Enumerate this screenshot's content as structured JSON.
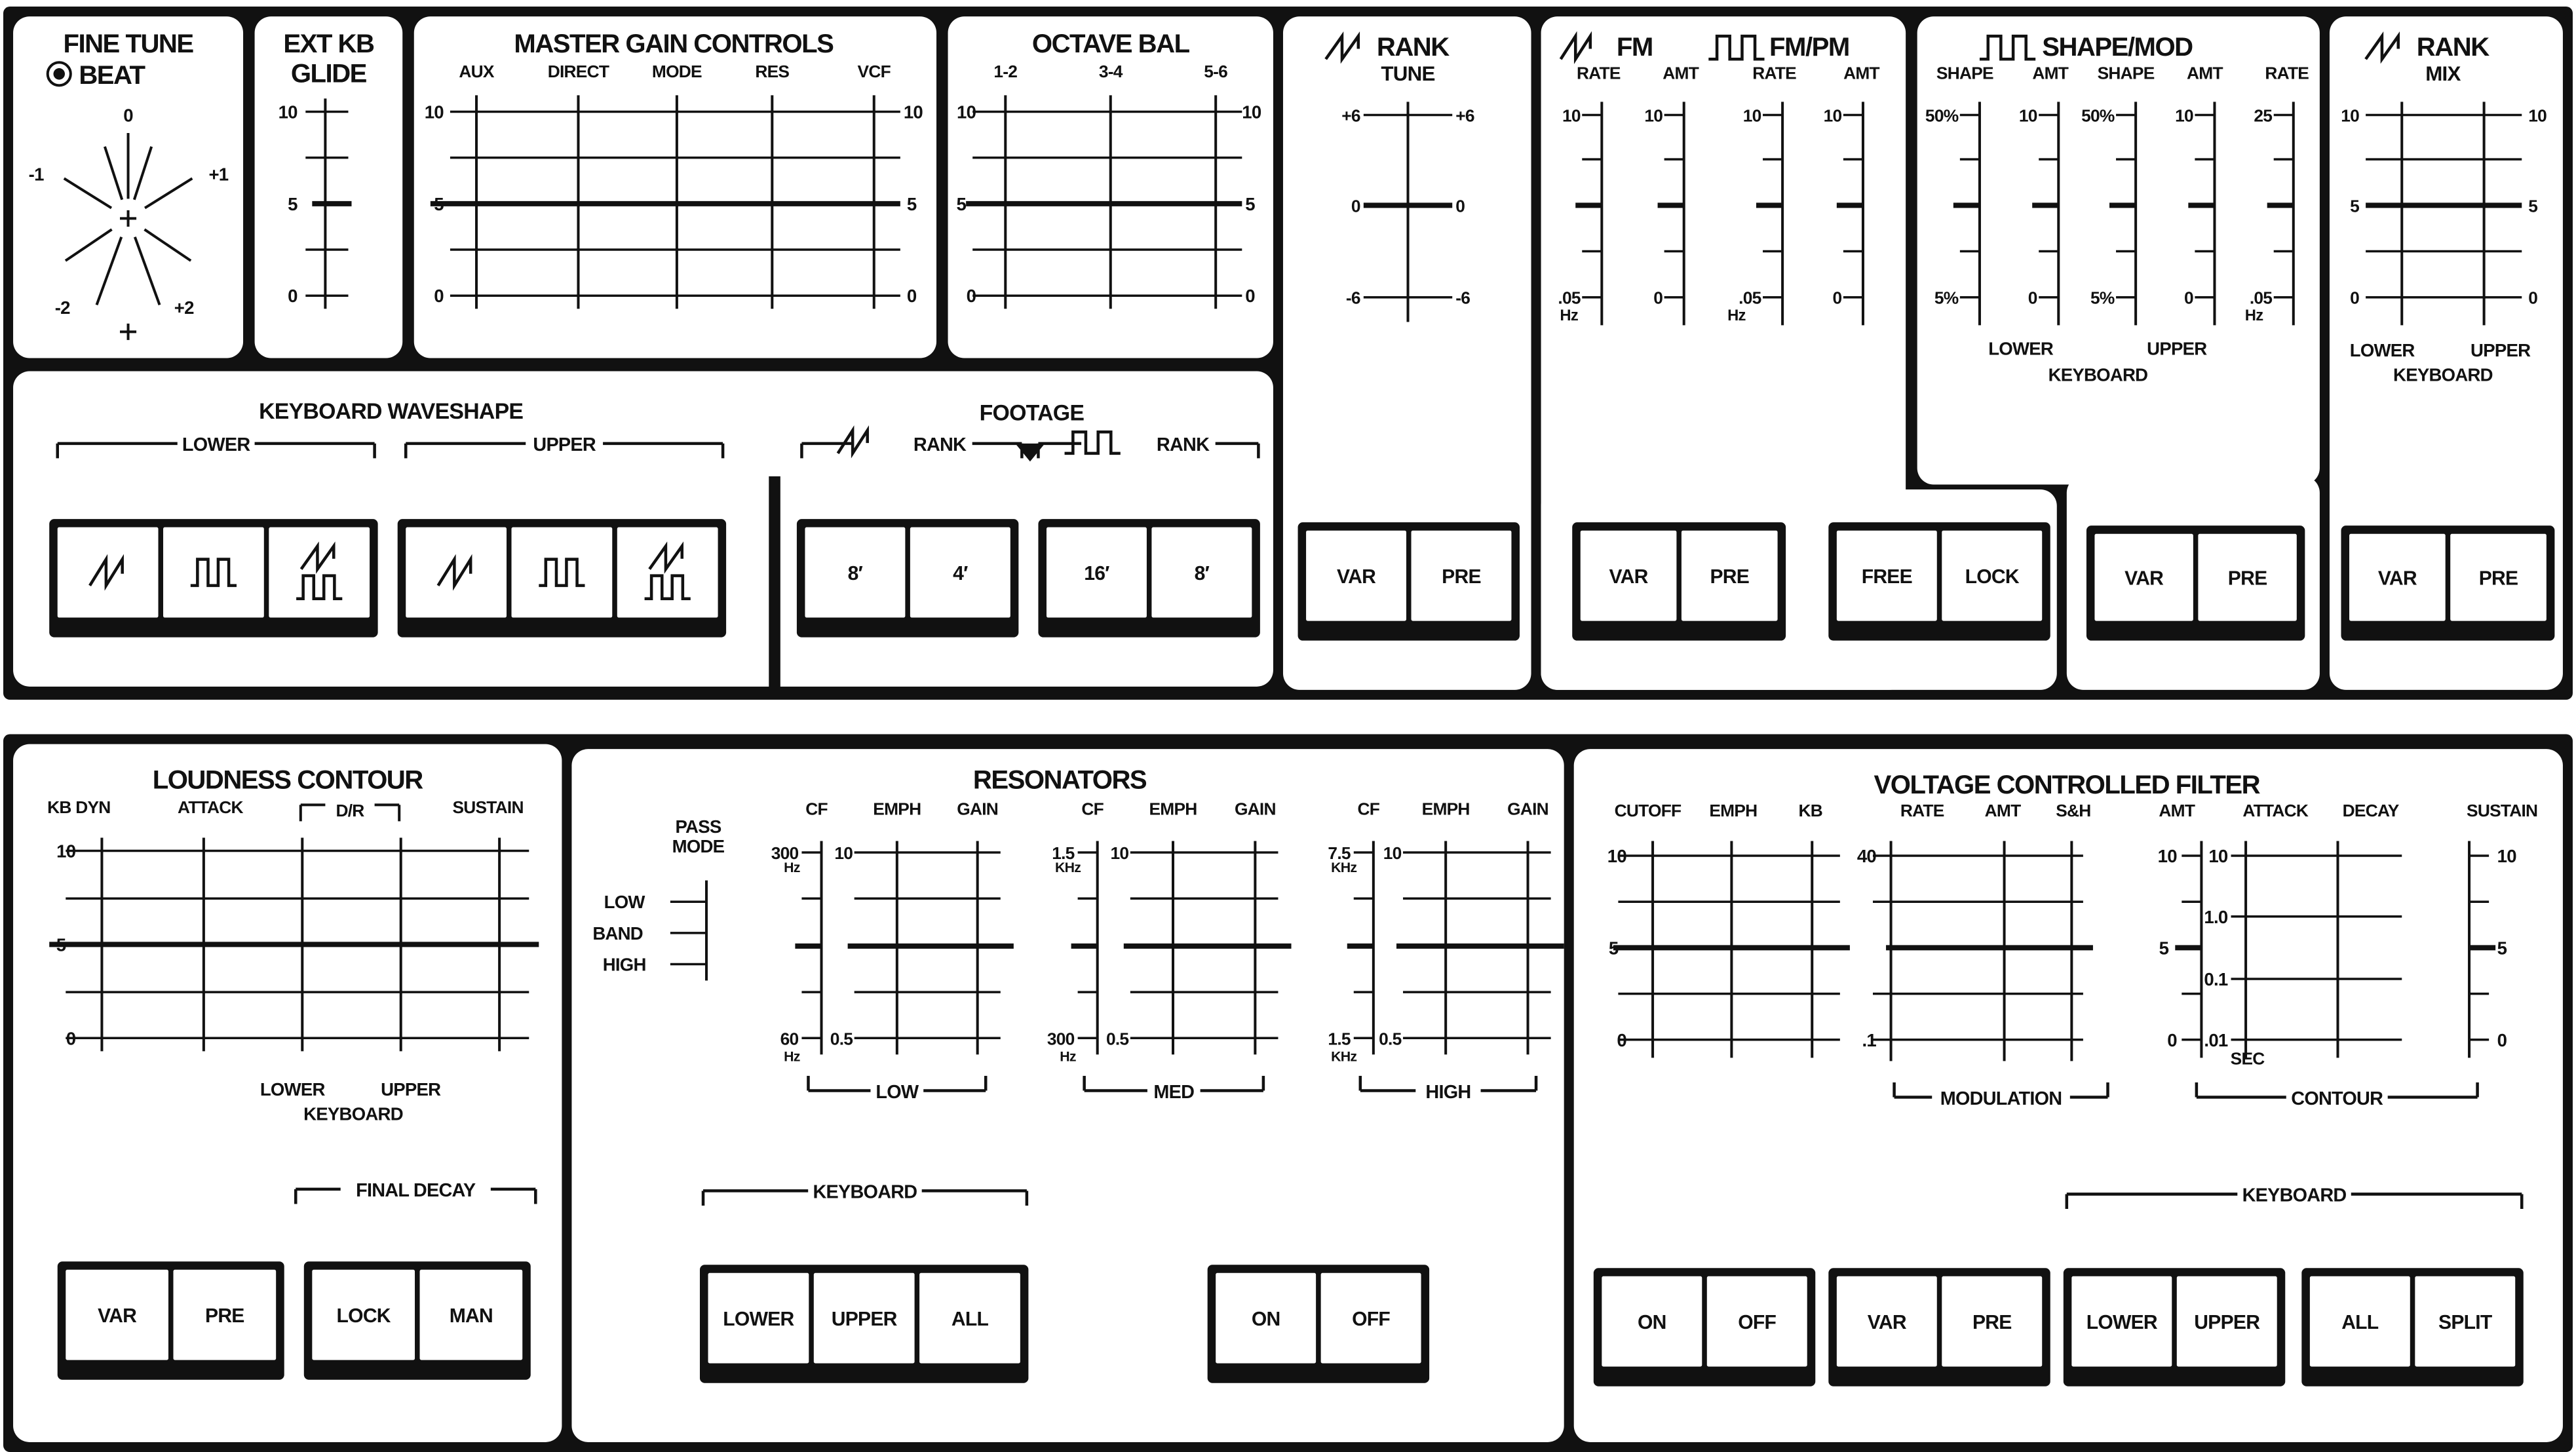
{
  "colors": {
    "ink": "#111111",
    "panel": "#ffffff",
    "paper": "#ffffff"
  },
  "fine_tune": {
    "title": "FINE TUNE",
    "beat": "BEAT",
    "icon": "beat-knob-icon",
    "scale": {
      "zero": "0",
      "m1": "-1",
      "p1": "+1",
      "m2": "-2",
      "p2": "+2"
    }
  },
  "glide": {
    "title": "EXT KB",
    "subtitle": "GLIDE",
    "scale": [
      "10",
      "5",
      "0"
    ]
  },
  "master_gain": {
    "title": "MASTER GAIN CONTROLS",
    "columns": [
      "AUX",
      "DIRECT",
      "MODE",
      "RES",
      "VCF"
    ],
    "scale": [
      "10",
      "5",
      "0"
    ]
  },
  "octave_bal": {
    "title": "OCTAVE BAL",
    "columns": [
      "1-2",
      "3-4",
      "5-6"
    ],
    "scale": [
      "10",
      "5",
      "0"
    ]
  },
  "rank_tune": {
    "title": "RANK",
    "subtitle": "TUNE",
    "icon": "sawtooth-wave-icon",
    "scale": [
      "+6",
      "0",
      "-6"
    ],
    "buttons": [
      "VAR",
      "PRE"
    ]
  },
  "fm": {
    "title_fm": "FM",
    "title_fmpm": "FM/PM",
    "columns": [
      "RATE",
      "AMT",
      "RATE",
      "AMT"
    ],
    "top": [
      "10",
      "10",
      "10",
      "10"
    ],
    "bottom": [
      ".05",
      "0",
      ".05",
      "0"
    ],
    "unit": "Hz",
    "buttons_mode": [
      "VAR",
      "PRE"
    ],
    "buttons_sync": [
      "FREE",
      "LOCK"
    ]
  },
  "shape_mod": {
    "title": "SHAPE/MOD",
    "columns": [
      "SHAPE",
      "AMT",
      "SHAPE",
      "AMT",
      "RATE"
    ],
    "top": [
      "50%",
      "10",
      "50%",
      "10",
      "25"
    ],
    "bottom": [
      "5%",
      "0",
      "5%",
      "0",
      ".05"
    ],
    "unit": "Hz",
    "lower": "LOWER",
    "upper": "UPPER",
    "keyboard": "KEYBOARD",
    "buttons": [
      "VAR",
      "PRE"
    ]
  },
  "rank_mix": {
    "title": "RANK",
    "subtitle": "MIX",
    "scale": [
      "10",
      "5",
      "0"
    ],
    "lower": "LOWER",
    "upper": "UPPER",
    "keyboard": "KEYBOARD",
    "buttons": [
      "VAR",
      "PRE"
    ]
  },
  "waveshape": {
    "title": "KEYBOARD WAVESHAPE",
    "lower": "LOWER",
    "upper": "UPPER",
    "button_icons": [
      "sawtooth-wave-icon",
      "square-wave-icon",
      "saw-and-square-wave-icon"
    ]
  },
  "footage": {
    "title": "FOOTAGE",
    "rank": "RANK",
    "saw_buttons": [
      "8′",
      "4′"
    ],
    "square_buttons": [
      "16′",
      "8′"
    ]
  },
  "loudness": {
    "title": "LOUDNESS CONTOUR",
    "columns": [
      "KB DYN",
      "ATTACK",
      "D/R",
      "SUSTAIN"
    ],
    "scale": [
      "10",
      "5",
      "0"
    ],
    "lower": "LOWER",
    "upper": "UPPER",
    "keyboard": "KEYBOARD",
    "final_decay": "FINAL DECAY",
    "buttons_mode": [
      "VAR",
      "PRE"
    ],
    "buttons_decay": [
      "LOCK",
      "MAN"
    ]
  },
  "resonators": {
    "title": "RESONATORS",
    "pass_mode": [
      "PASS",
      "MODE"
    ],
    "modes": [
      "LOW",
      "BAND",
      "HIGH"
    ],
    "columns": [
      "CF",
      "EMPH",
      "GAIN"
    ],
    "bands": [
      {
        "name": "LOW",
        "cf_top": "300",
        "cf_top_unit": "Hz",
        "cf_bottom": "60",
        "cf_bottom_unit": "Hz"
      },
      {
        "name": "MED",
        "cf_top": "1.5",
        "cf_top_unit": "KHz",
        "cf_bottom": "300",
        "cf_bottom_unit": "Hz"
      },
      {
        "name": "HIGH",
        "cf_top": "7.5",
        "cf_top_unit": "KHz",
        "cf_bottom": "1.5",
        "cf_bottom_unit": "KHz"
      }
    ],
    "emph_top": "10",
    "emph_bottom": "0.5",
    "keyboard": "KEYBOARD",
    "buttons_keyboard": [
      "LOWER",
      "UPPER",
      "ALL"
    ],
    "buttons_power": [
      "ON",
      "OFF"
    ]
  },
  "vcf": {
    "title": "VOLTAGE CONTROLLED FILTER",
    "columns": [
      "CUTOFF",
      "EMPH",
      "KB",
      "RATE",
      "AMT",
      "S&H",
      "AMT",
      "ATTACK",
      "DECAY",
      "SUSTAIN"
    ],
    "scale": [
      "10",
      "5",
      "0"
    ],
    "mod_scale": [
      "40",
      ".1"
    ],
    "contour_scale": [
      "10",
      "1.0",
      "0.1",
      ".01"
    ],
    "sec": "SEC",
    "modulation": "MODULATION",
    "contour": "CONTOUR",
    "keyboard": "KEYBOARD",
    "buttons_power": [
      "ON",
      "OFF"
    ],
    "buttons_mode": [
      "VAR",
      "PRE"
    ],
    "buttons_keyboard": [
      "LOWER",
      "UPPER"
    ],
    "buttons_split": [
      "ALL",
      "SPLIT"
    ]
  }
}
